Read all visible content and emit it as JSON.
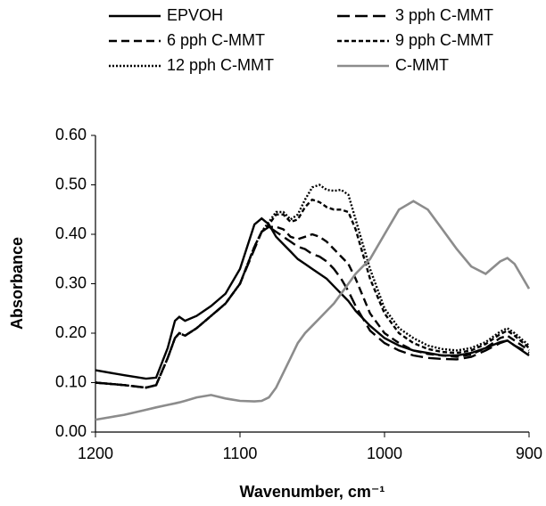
{
  "chart_data": {
    "type": "line",
    "x_label": "Wavenumber, cm⁻¹",
    "y_label": "Absorbance",
    "xlim": [
      1200,
      900
    ],
    "xticks": [
      1200,
      1100,
      1000,
      900
    ],
    "ylim": [
      0,
      0.6
    ],
    "yticks": [
      {
        "value": 0,
        "label": "0.00"
      },
      {
        "value": 0.1,
        "label": "0.10"
      },
      {
        "value": 0.2,
        "label": "0.20"
      },
      {
        "value": 0.3,
        "label": "0.30"
      },
      {
        "value": 0.4,
        "label": "0.40"
      },
      {
        "value": 0.5,
        "label": "0.50"
      },
      {
        "value": 0.6,
        "label": "0.60"
      }
    ],
    "grid": false,
    "x": [
      1200,
      1180,
      1165,
      1158,
      1150,
      1145,
      1142,
      1138,
      1130,
      1120,
      1110,
      1100,
      1090,
      1085,
      1080,
      1075,
      1070,
      1065,
      1060,
      1055,
      1050,
      1045,
      1040,
      1035,
      1030,
      1025,
      1020,
      1010,
      1000,
      990,
      980,
      970,
      960,
      950,
      940,
      930,
      920,
      915,
      910,
      900
    ],
    "series": [
      {
        "name": "EPVOH",
        "color": "#000000",
        "line_style": "solid",
        "values": [
          0.125,
          0.115,
          0.108,
          0.11,
          0.17,
          0.225,
          0.233,
          0.225,
          0.235,
          0.255,
          0.28,
          0.33,
          0.42,
          0.432,
          0.42,
          0.395,
          0.38,
          0.365,
          0.35,
          0.34,
          0.33,
          0.32,
          0.31,
          0.295,
          0.28,
          0.265,
          0.245,
          0.215,
          0.19,
          0.175,
          0.165,
          0.16,
          0.155,
          0.155,
          0.16,
          0.17,
          0.182,
          0.185,
          0.175,
          0.155
        ]
      },
      {
        "name": "3 pph C-MMT",
        "color": "#000000",
        "line_style": "longdash",
        "values": [
          0.1,
          0.095,
          0.09,
          0.095,
          0.15,
          0.19,
          0.2,
          0.195,
          0.21,
          0.235,
          0.26,
          0.3,
          0.37,
          0.405,
          0.415,
          0.405,
          0.395,
          0.385,
          0.375,
          0.37,
          0.36,
          0.355,
          0.345,
          0.33,
          0.31,
          0.285,
          0.255,
          0.205,
          0.18,
          0.165,
          0.155,
          0.15,
          0.148,
          0.147,
          0.152,
          0.165,
          0.18,
          0.185,
          0.175,
          0.16
        ]
      },
      {
        "name": "6 pph C-MMT",
        "color": "#000000",
        "line_style": "dash",
        "values": [
          0.1,
          0.095,
          0.09,
          0.095,
          0.15,
          0.19,
          0.2,
          0.195,
          0.21,
          0.235,
          0.26,
          0.3,
          0.375,
          0.405,
          0.415,
          0.415,
          0.41,
          0.395,
          0.39,
          0.395,
          0.4,
          0.395,
          0.385,
          0.37,
          0.355,
          0.34,
          0.31,
          0.24,
          0.2,
          0.18,
          0.165,
          0.158,
          0.155,
          0.152,
          0.157,
          0.17,
          0.19,
          0.195,
          0.185,
          0.165
        ]
      },
      {
        "name": "9 pph C-MMT",
        "color": "#000000",
        "line_style": "shortdash",
        "values": [
          0.1,
          0.095,
          0.09,
          0.095,
          0.15,
          0.19,
          0.2,
          0.195,
          0.21,
          0.235,
          0.26,
          0.3,
          0.375,
          0.405,
          0.42,
          0.44,
          0.44,
          0.425,
          0.43,
          0.455,
          0.47,
          0.465,
          0.455,
          0.45,
          0.45,
          0.445,
          0.41,
          0.31,
          0.24,
          0.2,
          0.18,
          0.168,
          0.162,
          0.16,
          0.165,
          0.178,
          0.198,
          0.205,
          0.195,
          0.17
        ]
      },
      {
        "name": "12 pph C-MMT",
        "color": "#000000",
        "line_style": "dot",
        "values": [
          0.1,
          0.095,
          0.09,
          0.095,
          0.15,
          0.19,
          0.2,
          0.195,
          0.21,
          0.235,
          0.26,
          0.3,
          0.375,
          0.405,
          0.425,
          0.445,
          0.445,
          0.43,
          0.44,
          0.47,
          0.495,
          0.5,
          0.49,
          0.488,
          0.49,
          0.48,
          0.43,
          0.33,
          0.25,
          0.21,
          0.19,
          0.175,
          0.168,
          0.165,
          0.17,
          0.182,
          0.203,
          0.21,
          0.2,
          0.175
        ]
      },
      {
        "name": "C-MMT",
        "color": "#8c8c8c",
        "line_style": "solid",
        "values": [
          0.025,
          0.035,
          0.045,
          0.05,
          0.055,
          0.058,
          0.06,
          0.063,
          0.07,
          0.075,
          0.068,
          0.063,
          0.062,
          0.063,
          0.07,
          0.09,
          0.12,
          0.15,
          0.18,
          0.2,
          0.215,
          0.23,
          0.245,
          0.26,
          0.28,
          0.3,
          0.32,
          0.35,
          0.4,
          0.45,
          0.467,
          0.45,
          0.41,
          0.37,
          0.335,
          0.32,
          0.345,
          0.352,
          0.34,
          0.29
        ]
      }
    ]
  }
}
